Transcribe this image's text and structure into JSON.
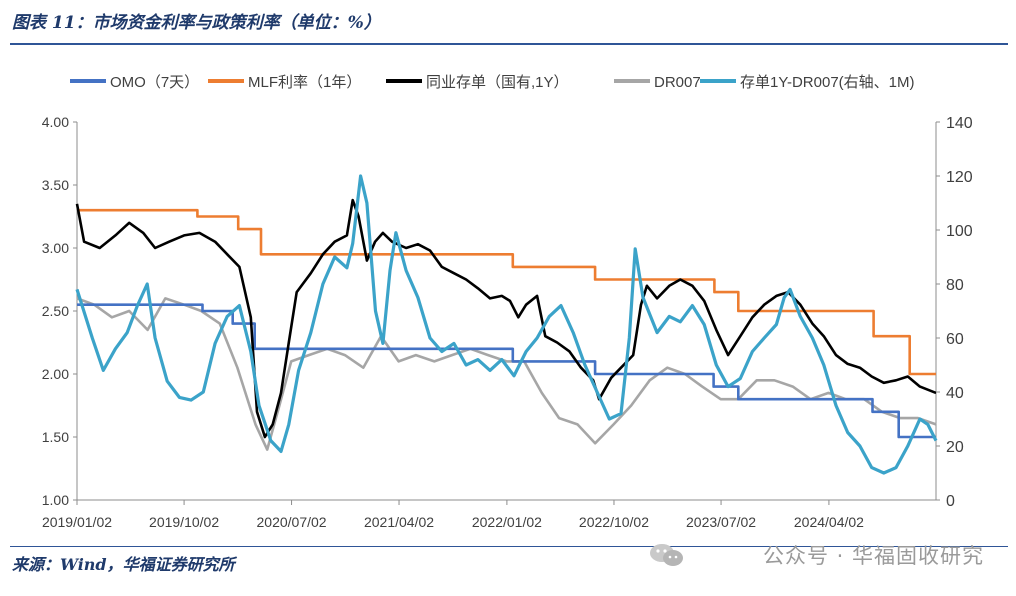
{
  "header": {
    "title": "图表 11：市场资金利率与政策利率（单位：%）"
  },
  "footer": {
    "source": "来源：Wind，华福证券研究所",
    "watermark": "公众号 · 华福固收研究"
  },
  "chart_data": {
    "type": "line",
    "x_ticks": [
      "2019/01/02",
      "2019/10/02",
      "2020/07/02",
      "2021/04/02",
      "2022/01/02",
      "2022/10/02",
      "2023/07/02",
      "2024/04/02"
    ],
    "x_range": [
      "2019/01/02",
      "2024/12/31"
    ],
    "y_left": {
      "range": [
        1.0,
        4.0
      ],
      "ticks": [
        "1.00",
        "1.50",
        "2.00",
        "2.50",
        "3.00",
        "3.50",
        "4.00"
      ]
    },
    "y_right": {
      "range": [
        0,
        140
      ],
      "ticks": [
        "0",
        "20",
        "40",
        "60",
        "80",
        "100",
        "120",
        "140"
      ]
    },
    "legend_position": "top",
    "series": [
      {
        "name": "OMO（7天）",
        "axis": "left",
        "color": "#4472c4",
        "step": true,
        "points": [
          [
            "2019/01/02",
            2.55
          ],
          [
            "2019/11/18",
            2.5
          ],
          [
            "2020/02/03",
            2.4
          ],
          [
            "2020/03/30",
            2.2
          ],
          [
            "2022/01/17",
            2.1
          ],
          [
            "2022/08/15",
            2.0
          ],
          [
            "2023/06/13",
            1.9
          ],
          [
            "2023/08/15",
            1.8
          ],
          [
            "2024/07/22",
            1.7
          ],
          [
            "2024/09/27",
            1.5
          ],
          [
            "2024/12/31",
            1.5
          ]
        ]
      },
      {
        "name": "MLF利率（1年）",
        "axis": "left",
        "color": "#ed7d31",
        "step": true,
        "points": [
          [
            "2019/01/02",
            3.3
          ],
          [
            "2019/11/05",
            3.25
          ],
          [
            "2020/02/17",
            3.15
          ],
          [
            "2020/04/15",
            2.95
          ],
          [
            "2022/01/17",
            2.85
          ],
          [
            "2022/08/15",
            2.75
          ],
          [
            "2023/06/15",
            2.65
          ],
          [
            "2023/08/15",
            2.5
          ],
          [
            "2024/07/25",
            2.3
          ],
          [
            "2024/10/25",
            2.0
          ],
          [
            "2024/12/31",
            2.0
          ]
        ]
      },
      {
        "name": "同业存单（国有,1Y）",
        "axis": "left",
        "color": "#000000",
        "points": [
          [
            "2019/01/02",
            3.35
          ],
          [
            "2019/01/20",
            3.05
          ],
          [
            "2019/03/01",
            3.0
          ],
          [
            "2019/04/10",
            3.1
          ],
          [
            "2019/05/15",
            3.2
          ],
          [
            "2019/06/20",
            3.12
          ],
          [
            "2019/07/20",
            3.0
          ],
          [
            "2019/08/25",
            3.05
          ],
          [
            "2019/10/02",
            3.1
          ],
          [
            "2019/11/10",
            3.12
          ],
          [
            "2019/12/20",
            3.05
          ],
          [
            "2020/01/20",
            2.95
          ],
          [
            "2020/02/20",
            2.85
          ],
          [
            "2020/03/20",
            2.45
          ],
          [
            "2020/04/05",
            1.7
          ],
          [
            "2020/04/25",
            1.5
          ],
          [
            "2020/05/15",
            1.6
          ],
          [
            "2020/06/05",
            1.85
          ],
          [
            "2020/06/25",
            2.25
          ],
          [
            "2020/07/15",
            2.65
          ],
          [
            "2020/08/20",
            2.8
          ],
          [
            "2020/09/20",
            2.95
          ],
          [
            "2020/10/20",
            3.05
          ],
          [
            "2020/11/20",
            3.1
          ],
          [
            "2020/12/05",
            3.38
          ],
          [
            "2020/12/20",
            3.25
          ],
          [
            "2021/01/10",
            2.9
          ],
          [
            "2021/01/31",
            3.05
          ],
          [
            "2021/02/20",
            3.12
          ],
          [
            "2021/03/15",
            3.05
          ],
          [
            "2021/04/20",
            3.0
          ],
          [
            "2021/05/20",
            3.03
          ],
          [
            "2021/06/20",
            2.98
          ],
          [
            "2021/07/20",
            2.85
          ],
          [
            "2021/08/20",
            2.8
          ],
          [
            "2021/09/20",
            2.75
          ],
          [
            "2021/10/20",
            2.68
          ],
          [
            "2021/11/20",
            2.6
          ],
          [
            "2021/12/20",
            2.62
          ],
          [
            "2022/01/10",
            2.58
          ],
          [
            "2022/01/31",
            2.45
          ],
          [
            "2022/02/20",
            2.55
          ],
          [
            "2022/03/20",
            2.62
          ],
          [
            "2022/04/10",
            2.3
          ],
          [
            "2022/05/10",
            2.25
          ],
          [
            "2022/06/10",
            2.18
          ],
          [
            "2022/07/10",
            2.05
          ],
          [
            "2022/08/10",
            1.95
          ],
          [
            "2022/08/25",
            1.8
          ],
          [
            "2022/09/25",
            1.97
          ],
          [
            "2022/10/20",
            2.05
          ],
          [
            "2022/11/20",
            2.15
          ],
          [
            "2022/12/10",
            2.55
          ],
          [
            "2022/12/25",
            2.7
          ],
          [
            "2023/01/20",
            2.6
          ],
          [
            "2023/02/20",
            2.7
          ],
          [
            "2023/03/20",
            2.75
          ],
          [
            "2023/04/20",
            2.7
          ],
          [
            "2023/05/20",
            2.58
          ],
          [
            "2023/06/20",
            2.35
          ],
          [
            "2023/07/20",
            2.15
          ],
          [
            "2023/08/20",
            2.3
          ],
          [
            "2023/09/20",
            2.45
          ],
          [
            "2023/10/20",
            2.55
          ],
          [
            "2023/11/20",
            2.62
          ],
          [
            "2023/12/20",
            2.65
          ],
          [
            "2024/01/20",
            2.55
          ],
          [
            "2024/02/20",
            2.4
          ],
          [
            "2024/03/20",
            2.3
          ],
          [
            "2024/04/20",
            2.15
          ],
          [
            "2024/05/20",
            2.08
          ],
          [
            "2024/06/20",
            2.05
          ],
          [
            "2024/07/20",
            1.98
          ],
          [
            "2024/08/20",
            1.93
          ],
          [
            "2024/09/20",
            1.95
          ],
          [
            "2024/10/20",
            1.98
          ],
          [
            "2024/11/20",
            1.9
          ],
          [
            "2024/12/31",
            1.85
          ]
        ]
      },
      {
        "name": "DR007",
        "axis": "left",
        "color": "#a6a6a6",
        "points": [
          [
            "2019/01/02",
            2.6
          ],
          [
            "2019/02/15",
            2.55
          ],
          [
            "2019/04/01",
            2.45
          ],
          [
            "2019/05/15",
            2.5
          ],
          [
            "2019/07/01",
            2.35
          ],
          [
            "2019/08/15",
            2.6
          ],
          [
            "2019/10/02",
            2.55
          ],
          [
            "2019/11/15",
            2.5
          ],
          [
            "2020/01/01",
            2.4
          ],
          [
            "2020/02/15",
            2.05
          ],
          [
            "2020/04/01",
            1.6
          ],
          [
            "2020/05/01",
            1.4
          ],
          [
            "2020/06/01",
            1.75
          ],
          [
            "2020/07/01",
            2.1
          ],
          [
            "2020/08/15",
            2.15
          ],
          [
            "2020/10/01",
            2.2
          ],
          [
            "2020/11/15",
            2.15
          ],
          [
            "2021/01/01",
            2.05
          ],
          [
            "2021/02/15",
            2.3
          ],
          [
            "2021/04/01",
            2.1
          ],
          [
            "2021/05/15",
            2.15
          ],
          [
            "2021/07/01",
            2.1
          ],
          [
            "2021/08/15",
            2.15
          ],
          [
            "2021/10/01",
            2.2
          ],
          [
            "2021/11/15",
            2.15
          ],
          [
            "2022/01/01",
            2.1
          ],
          [
            "2022/02/15",
            2.1
          ],
          [
            "2022/04/01",
            1.85
          ],
          [
            "2022/05/15",
            1.65
          ],
          [
            "2022/07/01",
            1.6
          ],
          [
            "2022/08/15",
            1.45
          ],
          [
            "2022/10/01",
            1.6
          ],
          [
            "2022/11/15",
            1.75
          ],
          [
            "2023/01/01",
            1.95
          ],
          [
            "2023/02/15",
            2.05
          ],
          [
            "2023/04/01",
            2.0
          ],
          [
            "2023/05/15",
            1.9
          ],
          [
            "2023/07/01",
            1.8
          ],
          [
            "2023/08/15",
            1.8
          ],
          [
            "2023/10/01",
            1.95
          ],
          [
            "2023/11/15",
            1.95
          ],
          [
            "2024/01/01",
            1.9
          ],
          [
            "2024/02/15",
            1.8
          ],
          [
            "2024/04/01",
            1.85
          ],
          [
            "2024/05/15",
            1.8
          ],
          [
            "2024/07/01",
            1.8
          ],
          [
            "2024/08/15",
            1.7
          ],
          [
            "2024/10/01",
            1.65
          ],
          [
            "2024/11/15",
            1.65
          ],
          [
            "2024/12/31",
            1.6
          ]
        ]
      },
      {
        "name": "存单1Y-DR007(右轴、1M)",
        "axis": "right",
        "color": "#3ba3c9",
        "points": [
          [
            "2019/01/02",
            78
          ],
          [
            "2019/02/10",
            60
          ],
          [
            "2019/03/10",
            48
          ],
          [
            "2019/04/10",
            56
          ],
          [
            "2019/05/10",
            62
          ],
          [
            "2019/06/05",
            72
          ],
          [
            "2019/06/30",
            80
          ],
          [
            "2019/07/20",
            60
          ],
          [
            "2019/08/20",
            44
          ],
          [
            "2019/09/20",
            38
          ],
          [
            "2019/10/20",
            37
          ],
          [
            "2019/11/20",
            40
          ],
          [
            "2019/12/20",
            58
          ],
          [
            "2020/01/20",
            68
          ],
          [
            "2020/02/20",
            72
          ],
          [
            "2020/03/20",
            55
          ],
          [
            "2020/04/10",
            35
          ],
          [
            "2020/05/10",
            22
          ],
          [
            "2020/06/05",
            18
          ],
          [
            "2020/06/25",
            28
          ],
          [
            "2020/07/20",
            48
          ],
          [
            "2020/08/20",
            62
          ],
          [
            "2020/09/20",
            80
          ],
          [
            "2020/10/20",
            90
          ],
          [
            "2020/11/20",
            86
          ],
          [
            "2020/12/05",
            95
          ],
          [
            "2020/12/25",
            120
          ],
          [
            "2021/01/10",
            110
          ],
          [
            "2021/02/01",
            70
          ],
          [
            "2021/02/20",
            58
          ],
          [
            "2021/03/10",
            85
          ],
          [
            "2021/03/25",
            99
          ],
          [
            "2021/04/20",
            85
          ],
          [
            "2021/05/20",
            75
          ],
          [
            "2021/06/20",
            60
          ],
          [
            "2021/07/20",
            55
          ],
          [
            "2021/08/20",
            58
          ],
          [
            "2021/09/20",
            50
          ],
          [
            "2021/10/20",
            52
          ],
          [
            "2021/11/20",
            48
          ],
          [
            "2021/12/20",
            52
          ],
          [
            "2022/01/20",
            46
          ],
          [
            "2022/02/20",
            55
          ],
          [
            "2022/03/20",
            60
          ],
          [
            "2022/04/20",
            68
          ],
          [
            "2022/05/20",
            72
          ],
          [
            "2022/06/20",
            62
          ],
          [
            "2022/07/20",
            50
          ],
          [
            "2022/08/20",
            40
          ],
          [
            "2022/09/20",
            30
          ],
          [
            "2022/10/20",
            32
          ],
          [
            "2022/11/10",
            60
          ],
          [
            "2022/11/25",
            93
          ],
          [
            "2022/12/15",
            75
          ],
          [
            "2023/01/20",
            62
          ],
          [
            "2023/02/20",
            68
          ],
          [
            "2023/03/20",
            66
          ],
          [
            "2023/04/20",
            72
          ],
          [
            "2023/05/20",
            65
          ],
          [
            "2023/06/20",
            50
          ],
          [
            "2023/07/20",
            42
          ],
          [
            "2023/08/20",
            45
          ],
          [
            "2023/09/20",
            55
          ],
          [
            "2023/10/20",
            60
          ],
          [
            "2023/11/20",
            65
          ],
          [
            "2023/12/10",
            75
          ],
          [
            "2023/12/25",
            78
          ],
          [
            "2024/01/20",
            68
          ],
          [
            "2024/02/20",
            60
          ],
          [
            "2024/03/20",
            50
          ],
          [
            "2024/04/20",
            35
          ],
          [
            "2024/05/20",
            25
          ],
          [
            "2024/06/20",
            20
          ],
          [
            "2024/07/20",
            12
          ],
          [
            "2024/08/20",
            10
          ],
          [
            "2024/09/20",
            12
          ],
          [
            "2024/10/20",
            20
          ],
          [
            "2024/11/20",
            30
          ],
          [
            "2024/12/10",
            28
          ],
          [
            "2024/12/31",
            22
          ]
        ]
      }
    ]
  }
}
